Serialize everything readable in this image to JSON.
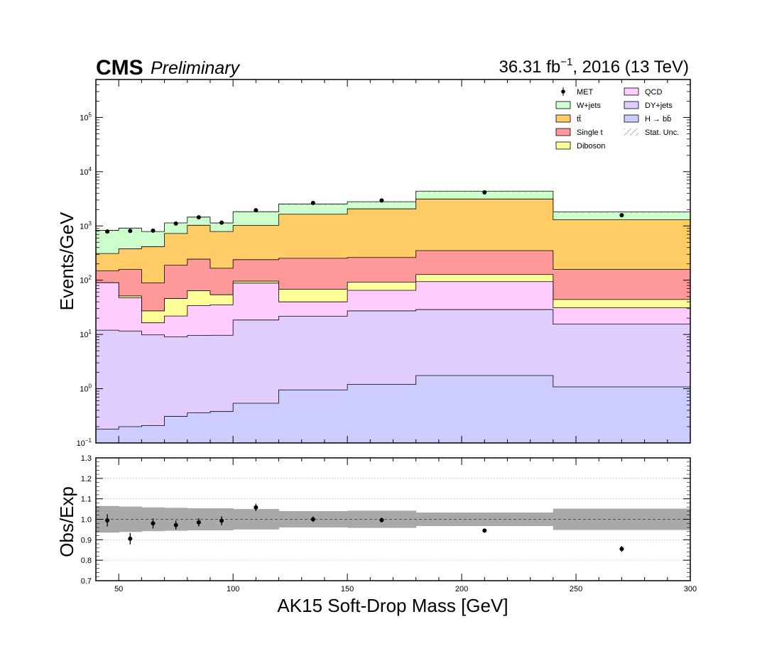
{
  "header": {
    "experiment": "CMS",
    "status": "Preliminary",
    "lumi_value": "36.31 fb",
    "lumi_exp": "−1",
    "lumi_suffix": ", 2016 (13 TeV)"
  },
  "chart_data": {
    "type": "bar",
    "stacked": true,
    "yscale": "log",
    "xlim": [
      40,
      300
    ],
    "ylim": [
      0.1,
      500000
    ],
    "ylabel": "Events/GeV",
    "xlabel": "AK15 Soft-Drop Mass [GeV]",
    "bin_edges": [
      40,
      50,
      60,
      70,
      80,
      90,
      100,
      120,
      150,
      180,
      240,
      300
    ],
    "series": [
      {
        "name": "H → bb̄",
        "color": "#ccccff",
        "values": [
          0.18,
          0.2,
          0.21,
          0.31,
          0.36,
          0.38,
          0.54,
          0.95,
          1.2,
          1.75,
          1.08
        ]
      },
      {
        "name": "DY+jets",
        "color": "#e1cdfd",
        "values": [
          11.8,
          11.4,
          9.6,
          8.7,
          9.2,
          9.3,
          17.9,
          20.7,
          26.0,
          27.0,
          14.4
        ]
      },
      {
        "name": "QCD",
        "color": "#ffccff",
        "values": [
          78,
          36,
          6.6,
          12.9,
          24.6,
          25.5,
          70,
          18.3,
          37.8,
          65.3,
          15.5
        ]
      },
      {
        "name": "Diboson",
        "color": "#ffff99",
        "values": [
          0.2,
          3.6,
          10.8,
          24,
          30,
          18.8,
          7.5,
          28,
          27.2,
          33,
          13.1
        ]
      },
      {
        "name": "Single t",
        "color": "#ff9999",
        "values": [
          58,
          107,
          62,
          143,
          180,
          112,
          143,
          185,
          170,
          224,
          114
        ]
      },
      {
        "name": "tt̄",
        "color": "#ffcc66",
        "values": [
          162,
          220,
          326,
          538,
          785,
          624,
          789,
          1394,
          1803,
          2789,
          1140
        ]
      },
      {
        "name": "W+jets",
        "color": "#ccffcc",
        "values": [
          520,
          534,
          375,
          412,
          426,
          345,
          805,
          897,
          733,
          1237,
          509
        ]
      }
    ],
    "data": {
      "name": "MET",
      "x": [
        45,
        55,
        65,
        75,
        85,
        95,
        110,
        135,
        165,
        210,
        270
      ],
      "y": [
        790,
        810,
        820,
        1110,
        1440,
        1150,
        1950,
        2650,
        2950,
        4150,
        1580
      ]
    },
    "stat_unc": {
      "name": "Stat. Unc."
    },
    "ratio": {
      "ylabel": "Obs/Exp",
      "ylim": [
        0.7,
        1.3
      ],
      "yticks": [
        0.7,
        0.8,
        0.9,
        1.0,
        1.1,
        1.2,
        1.3
      ],
      "x": [
        45,
        55,
        65,
        75,
        85,
        95,
        110,
        135,
        165,
        210,
        270
      ],
      "values": [
        0.995,
        0.905,
        0.98,
        0.972,
        0.985,
        0.993,
        1.058,
        1.0,
        0.996,
        0.945,
        0.855
      ],
      "errors": [
        0.03,
        0.028,
        0.025,
        0.022,
        0.02,
        0.022,
        0.018,
        0.013,
        0.012,
        0.008,
        0.014
      ],
      "unc_band": [
        0.065,
        0.062,
        0.058,
        0.056,
        0.054,
        0.054,
        0.05,
        0.04,
        0.042,
        0.033,
        0.052
      ]
    },
    "xticks": [
      50,
      100,
      150,
      200,
      250,
      300
    ],
    "yticks_main": [
      {
        "base": "10",
        "exp": "−1",
        "value": 0.1
      },
      {
        "base": "10",
        "exp": "0",
        "value": 1
      },
      {
        "base": "10",
        "exp": "1",
        "value": 10
      },
      {
        "base": "10",
        "exp": "2",
        "value": 100
      },
      {
        "base": "10",
        "exp": "3",
        "value": 1000
      },
      {
        "base": "10",
        "exp": "4",
        "value": 10000
      },
      {
        "base": "10",
        "exp": "5",
        "value": 100000
      }
    ],
    "legend": {
      "placement": "top-right",
      "col1": [
        {
          "label": "MET",
          "kind": "data"
        },
        {
          "label": "W+jets",
          "kind": "fill",
          "color": "#ccffcc"
        },
        {
          "label": "tt̄",
          "kind": "fill",
          "color": "#ffcc66"
        },
        {
          "label": "Single t",
          "kind": "fill",
          "color": "#ff9999"
        },
        {
          "label": "Diboson",
          "kind": "fill",
          "color": "#ffff99"
        }
      ],
      "col2": [
        {
          "label": "QCD",
          "kind": "fill",
          "color": "#ffccff"
        },
        {
          "label": "DY+jets",
          "kind": "fill",
          "color": "#e1cdfd"
        },
        {
          "label": "H → bb̄",
          "kind": "fill",
          "color": "#ccccff"
        },
        {
          "label": "Stat. Unc.",
          "kind": "hatch"
        }
      ]
    }
  }
}
